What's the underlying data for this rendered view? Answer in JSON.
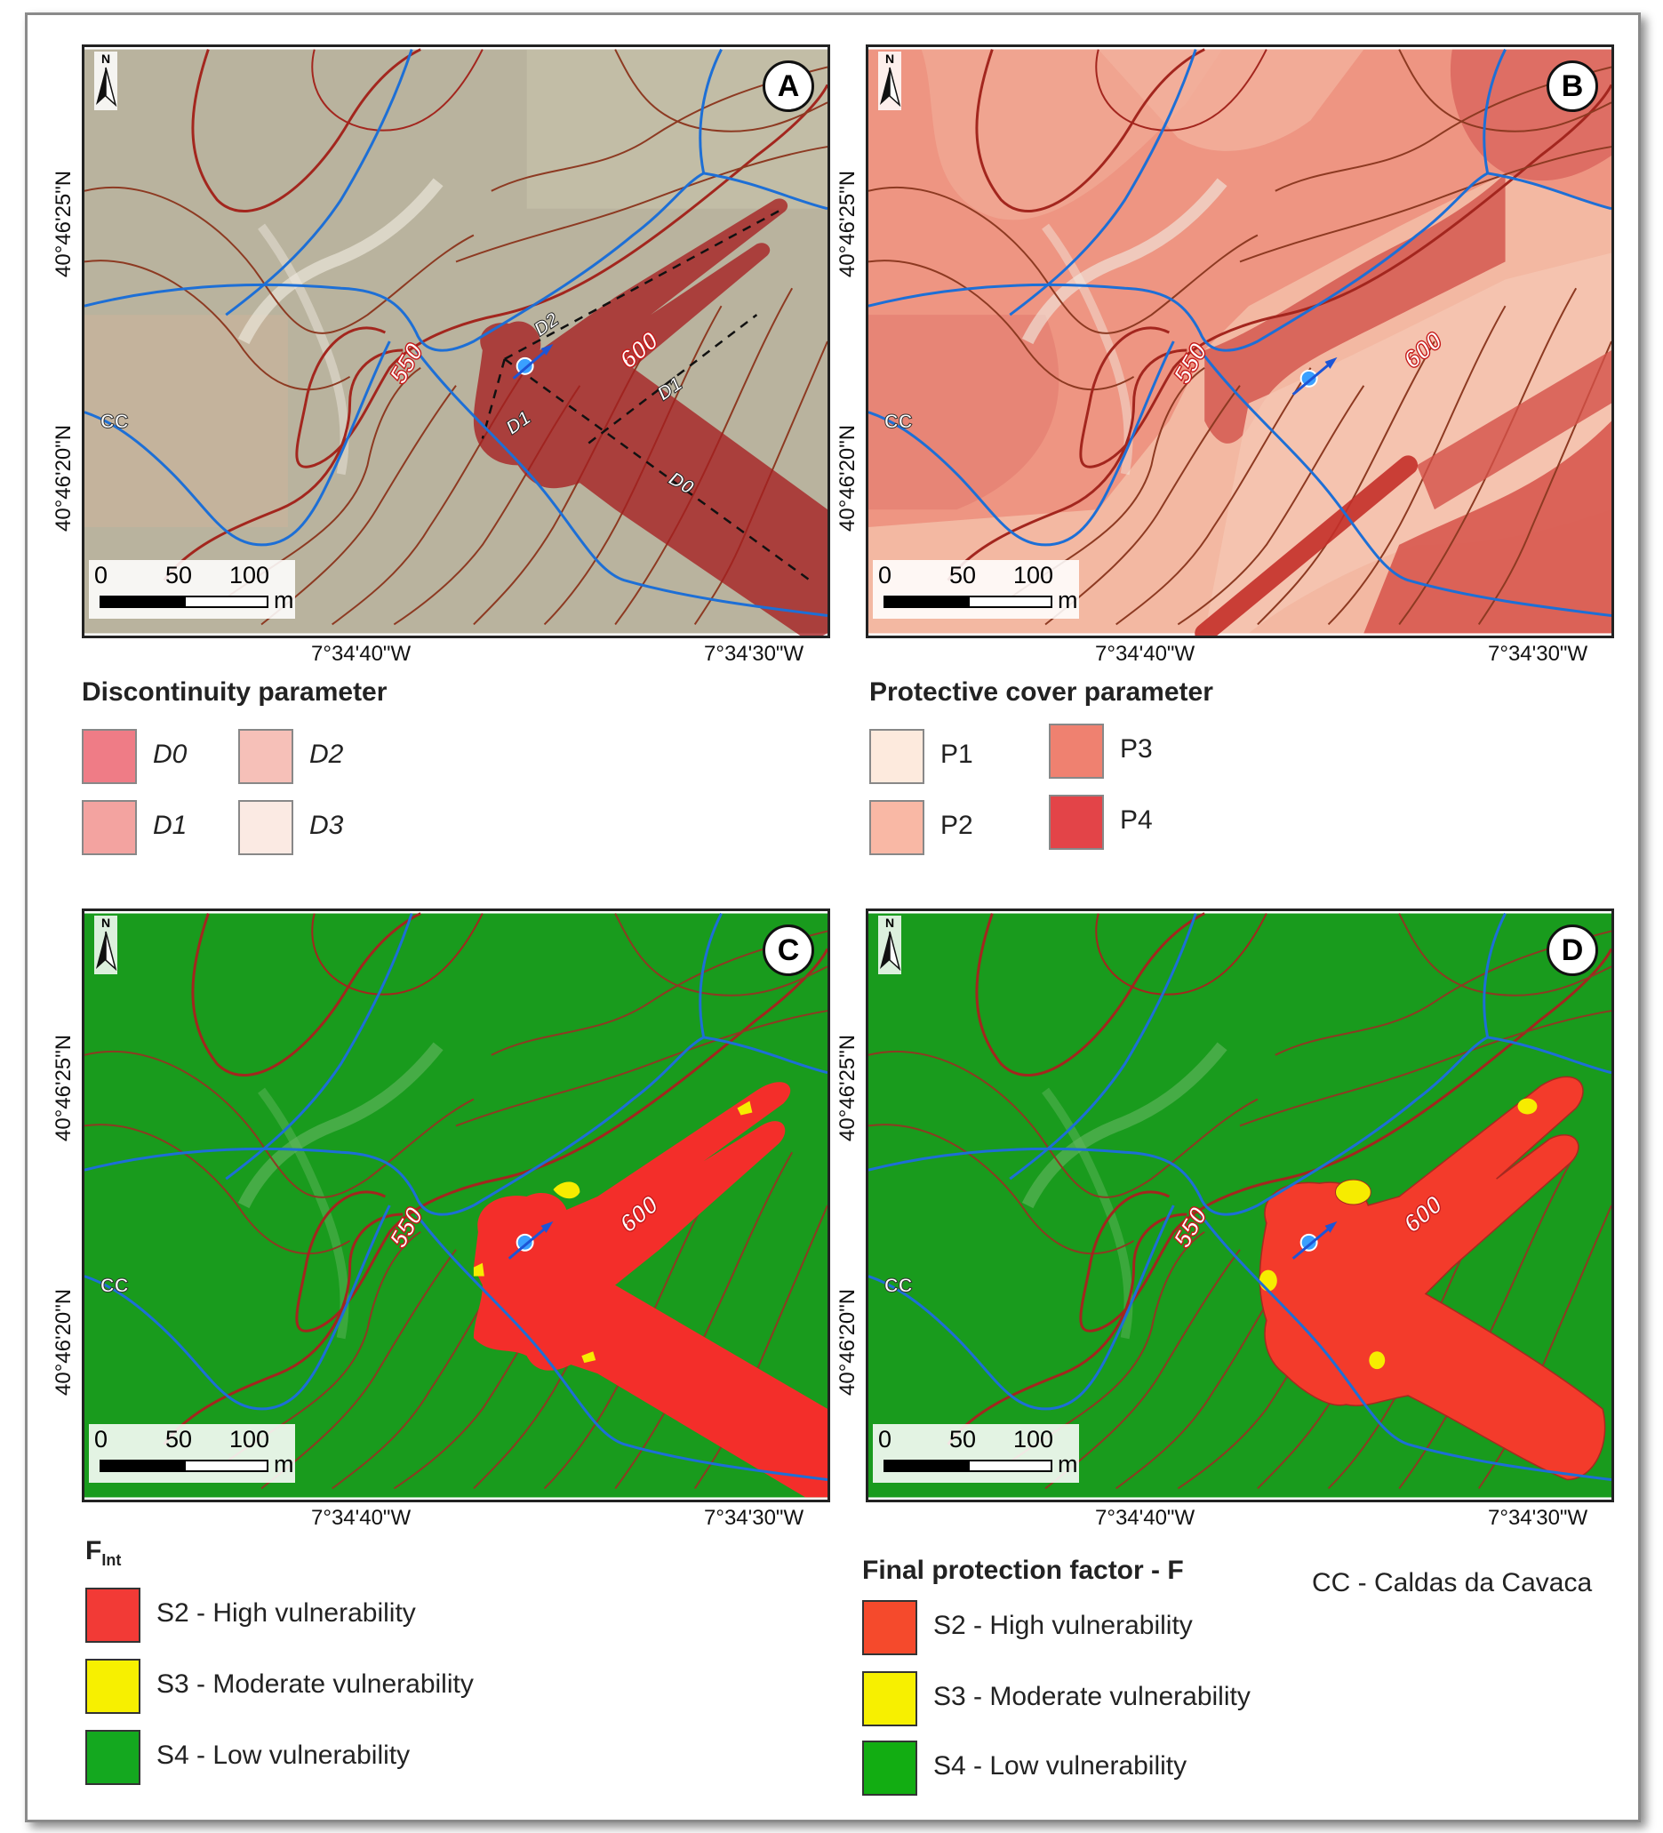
{
  "panels": [
    {
      "id": "A",
      "label": "A",
      "theme": "satellite"
    },
    {
      "id": "B",
      "label": "B",
      "theme": "protective"
    },
    {
      "id": "C",
      "label": "C",
      "theme": "fint"
    },
    {
      "id": "D",
      "label": "D",
      "theme": "final"
    }
  ],
  "axes": {
    "lat_ticks": [
      "40°46'25\"N",
      "40°46'20\"N"
    ],
    "lon_ticks": [
      "7°34'40\"W",
      "7°34'30\"W"
    ]
  },
  "map_labels": {
    "north": "N",
    "contour_550": "550",
    "contour_600": "600",
    "place_code": "CC",
    "lineaments": [
      "D2",
      "D1",
      "D1",
      "D0"
    ]
  },
  "scalebar": {
    "ticks": [
      "0",
      "50",
      "100"
    ],
    "unit": "m"
  },
  "legends": {
    "discontinuity": {
      "title": "Discontinuity parameter",
      "items": [
        {
          "label": "D0",
          "color": "#ef7c86"
        },
        {
          "label": "D2",
          "color": "#f6c0b8"
        },
        {
          "label": "D1",
          "color": "#f3a3a0"
        },
        {
          "label": "D3",
          "color": "#fbeae3"
        }
      ]
    },
    "protective": {
      "title": "Protective cover parameter",
      "items": [
        {
          "label": "P1",
          "color": "#fdeadd"
        },
        {
          "label": "P3",
          "color": "#ef8170"
        },
        {
          "label": "P2",
          "color": "#f9b8a5"
        },
        {
          "label": "P4",
          "color": "#e34448"
        }
      ]
    },
    "fint": {
      "title_main": "F",
      "title_sub": "Int",
      "items": [
        {
          "label": "S2 - High vulnerability",
          "color": "#f23a36"
        },
        {
          "label": "S3 - Moderate vulnerability",
          "color": "#f7f000"
        },
        {
          "label": "S4 - Low vulnerability",
          "color": "#14a81f"
        }
      ]
    },
    "final": {
      "title": "Final protection factor - F",
      "items": [
        {
          "label": "S2 - High vulnerability",
          "color": "#f54a2c"
        },
        {
          "label": "S3  - Moderate vulnerability",
          "color": "#f7f000"
        },
        {
          "label": "S4 - Low vulnerability",
          "color": "#12ad12"
        }
      ]
    }
  },
  "note": "CC - Caldas da Cavaca"
}
